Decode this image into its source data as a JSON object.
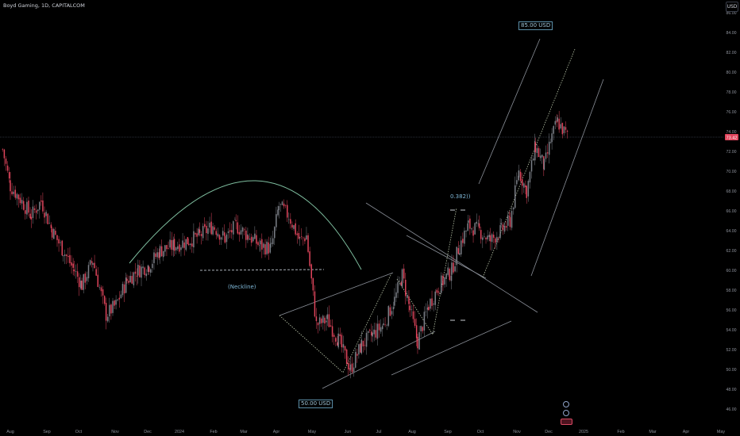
{
  "header": {
    "title": "Boyd Gaming, 1D, CAPITALCOM",
    "currency": "USD"
  },
  "price_axis": {
    "ticks": [
      "86.00",
      "84.00",
      "82.00",
      "80.00",
      "78.00",
      "76.00",
      "74.00",
      "72.00",
      "70.00",
      "68.00",
      "66.00",
      "64.00",
      "62.00",
      "60.00",
      "58.00",
      "56.00",
      "54.00",
      "52.00",
      "50.00",
      "48.00",
      "46.00"
    ],
    "current_price": "73.42"
  },
  "time_axis": {
    "ticks": [
      "Aug",
      "Sep",
      "Oct",
      "Nov",
      "Dec",
      "2024",
      "Feb",
      "Mar",
      "Apr",
      "May",
      "Jun",
      "Jul",
      "Aug",
      "Sep",
      "Oct",
      "Nov",
      "Dec",
      "2025",
      "Feb",
      "Mar",
      "Apr",
      "May"
    ]
  },
  "annotations": {
    "neckline": "(Neckline)",
    "fib": "0.382))",
    "target_top": "85.00 USD",
    "target_bottom": "50.00 USD"
  },
  "colors": {
    "up": "#7c8088",
    "down": "#e0455c",
    "background": "#000000",
    "line": "#9aa0a6",
    "dotted": "#b8c4a8",
    "arc": "#7fbfa0"
  },
  "chart_data": {
    "type": "candlestick",
    "title": "Boyd Gaming, 1D, CAPITALCOM",
    "x_range": [
      "2023-08",
      "2025-05"
    ],
    "y_range": [
      46,
      86
    ],
    "grid": false,
    "price_path": [
      {
        "date": "2023-07-25",
        "close": 72.2
      },
      {
        "date": "2023-08-01",
        "close": 68.5
      },
      {
        "date": "2023-08-10",
        "close": 67.2
      },
      {
        "date": "2023-08-20",
        "close": 65.5
      },
      {
        "date": "2023-08-29",
        "close": 67.0
      },
      {
        "date": "2023-09-08",
        "close": 64.0
      },
      {
        "date": "2023-09-18",
        "close": 62.0
      },
      {
        "date": "2023-09-28",
        "close": 60.0
      },
      {
        "date": "2023-10-05",
        "close": 58.5
      },
      {
        "date": "2023-10-15",
        "close": 61.0
      },
      {
        "date": "2023-10-27",
        "close": 55.5
      },
      {
        "date": "2023-11-05",
        "close": 56.5
      },
      {
        "date": "2023-11-15",
        "close": 59.0
      },
      {
        "date": "2023-11-25",
        "close": 60.0
      },
      {
        "date": "2023-12-05",
        "close": 60.5
      },
      {
        "date": "2023-12-15",
        "close": 62.0
      },
      {
        "date": "2023-12-28",
        "close": 62.5
      },
      {
        "date": "2024-01-10",
        "close": 63.0
      },
      {
        "date": "2024-01-20",
        "close": 63.5
      },
      {
        "date": "2024-02-01",
        "close": 64.5
      },
      {
        "date": "2024-02-12",
        "close": 63.2
      },
      {
        "date": "2024-02-22",
        "close": 64.5
      },
      {
        "date": "2024-03-04",
        "close": 63.5
      },
      {
        "date": "2024-03-15",
        "close": 62.5
      },
      {
        "date": "2024-03-25",
        "close": 62.2
      },
      {
        "date": "2024-04-01",
        "close": 66.5
      },
      {
        "date": "2024-04-10",
        "close": 65.5
      },
      {
        "date": "2024-04-20",
        "close": 63.0
      },
      {
        "date": "2024-04-26",
        "close": 63.5
      },
      {
        "date": "2024-05-05",
        "close": 54.5
      },
      {
        "date": "2024-05-15",
        "close": 55.0
      },
      {
        "date": "2024-05-25",
        "close": 53.0
      },
      {
        "date": "2024-06-05",
        "close": 50.0
      },
      {
        "date": "2024-06-15",
        "close": 52.5
      },
      {
        "date": "2024-06-25",
        "close": 53.5
      },
      {
        "date": "2024-07-05",
        "close": 54.5
      },
      {
        "date": "2024-07-15",
        "close": 57.0
      },
      {
        "date": "2024-07-22",
        "close": 59.5
      },
      {
        "date": "2024-07-29",
        "close": 56.0
      },
      {
        "date": "2024-08-05",
        "close": 52.8
      },
      {
        "date": "2024-08-15",
        "close": 56.5
      },
      {
        "date": "2024-08-25",
        "close": 58.5
      },
      {
        "date": "2024-09-05",
        "close": 60.0
      },
      {
        "date": "2024-09-12",
        "close": 62.5
      },
      {
        "date": "2024-09-20",
        "close": 64.5
      },
      {
        "date": "2024-09-30",
        "close": 64.0
      },
      {
        "date": "2024-10-10",
        "close": 63.0
      },
      {
        "date": "2024-10-20",
        "close": 64.0
      },
      {
        "date": "2024-10-28",
        "close": 65.0
      },
      {
        "date": "2024-11-05",
        "close": 70.0
      },
      {
        "date": "2024-11-12",
        "close": 68.0
      },
      {
        "date": "2024-11-20",
        "close": 72.5
      },
      {
        "date": "2024-11-28",
        "close": 70.5
      },
      {
        "date": "2024-12-05",
        "close": 73.5
      },
      {
        "date": "2024-12-10",
        "close": 75.0
      },
      {
        "date": "2024-12-16",
        "close": 74.0
      },
      {
        "date": "2024-12-20",
        "close": 73.4
      }
    ]
  }
}
